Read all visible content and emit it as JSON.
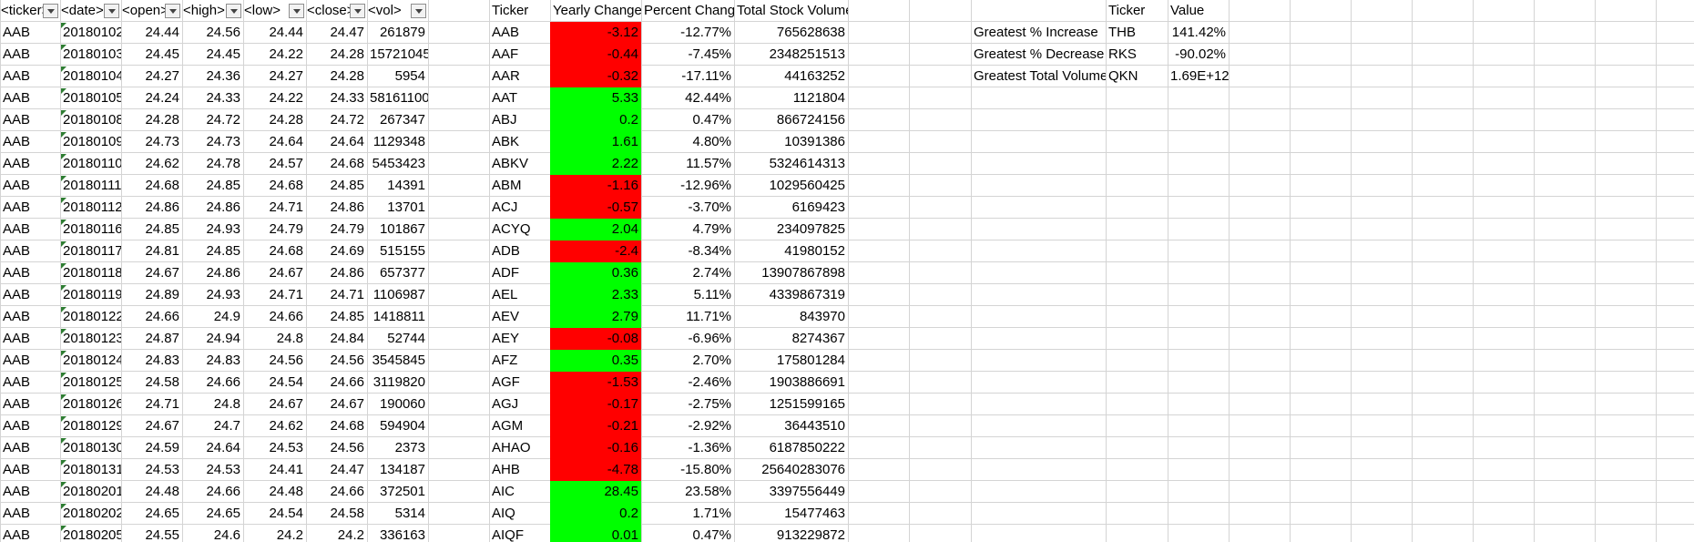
{
  "colors": {
    "positive": "#00ff00",
    "negative": "#ff0000",
    "grid": "#d4d4d4"
  },
  "icons": {
    "filter": "filter-dropdown-icon",
    "text_number": "number-stored-as-text-indicator"
  },
  "raw_headers": [
    "<ticker>",
    "<date>",
    "<open>",
    "<high>",
    "<low>",
    "<close>",
    "<vol>"
  ],
  "raw_rows": [
    [
      "AAB",
      "20180102",
      "24.44",
      "24.56",
      "24.44",
      "24.47",
      "261879"
    ],
    [
      "AAB",
      "20180103",
      "24.45",
      "24.45",
      "24.22",
      "24.28",
      "15721045"
    ],
    [
      "AAB",
      "20180104",
      "24.27",
      "24.36",
      "24.27",
      "24.28",
      "5954"
    ],
    [
      "AAB",
      "20180105",
      "24.24",
      "24.33",
      "24.22",
      "24.33",
      "58161100"
    ],
    [
      "AAB",
      "20180108",
      "24.28",
      "24.72",
      "24.28",
      "24.72",
      "267347"
    ],
    [
      "AAB",
      "20180109",
      "24.73",
      "24.73",
      "24.64",
      "24.64",
      "1129348"
    ],
    [
      "AAB",
      "20180110",
      "24.62",
      "24.78",
      "24.57",
      "24.68",
      "5453423"
    ],
    [
      "AAB",
      "20180111",
      "24.68",
      "24.85",
      "24.68",
      "24.85",
      "14391"
    ],
    [
      "AAB",
      "20180112",
      "24.86",
      "24.86",
      "24.71",
      "24.86",
      "13701"
    ],
    [
      "AAB",
      "20180116",
      "24.85",
      "24.93",
      "24.79",
      "24.79",
      "101867"
    ],
    [
      "AAB",
      "20180117",
      "24.81",
      "24.85",
      "24.68",
      "24.69",
      "515155"
    ],
    [
      "AAB",
      "20180118",
      "24.67",
      "24.86",
      "24.67",
      "24.86",
      "657377"
    ],
    [
      "AAB",
      "20180119",
      "24.89",
      "24.93",
      "24.71",
      "24.71",
      "1106987"
    ],
    [
      "AAB",
      "20180122",
      "24.66",
      "24.9",
      "24.66",
      "24.85",
      "1418811"
    ],
    [
      "AAB",
      "20180123",
      "24.87",
      "24.94",
      "24.8",
      "24.84",
      "52744"
    ],
    [
      "AAB",
      "20180124",
      "24.83",
      "24.83",
      "24.56",
      "24.56",
      "3545845"
    ],
    [
      "AAB",
      "20180125",
      "24.58",
      "24.66",
      "24.54",
      "24.66",
      "3119820"
    ],
    [
      "AAB",
      "20180126",
      "24.71",
      "24.8",
      "24.67",
      "24.67",
      "190060"
    ],
    [
      "AAB",
      "20180129",
      "24.67",
      "24.7",
      "24.62",
      "24.68",
      "594904"
    ],
    [
      "AAB",
      "20180130",
      "24.59",
      "24.64",
      "24.53",
      "24.56",
      "2373"
    ],
    [
      "AAB",
      "20180131",
      "24.53",
      "24.53",
      "24.41",
      "24.47",
      "134187"
    ],
    [
      "AAB",
      "20180201",
      "24.48",
      "24.66",
      "24.48",
      "24.66",
      "372501"
    ],
    [
      "AAB",
      "20180202",
      "24.65",
      "24.65",
      "24.54",
      "24.58",
      "5314"
    ],
    [
      "AAB",
      "20180205",
      "24.55",
      "24.6",
      "24.2",
      "24.2",
      "336163"
    ]
  ],
  "summary_headers": [
    "Ticker",
    "Yearly Change",
    "Percent Change",
    "Total Stock Volume"
  ],
  "summary_rows": [
    {
      "ticker": "AAB",
      "change": "-3.12",
      "pct": "-12.77%",
      "vol": "765628638",
      "status": "negative"
    },
    {
      "ticker": "AAF",
      "change": "-0.44",
      "pct": "-7.45%",
      "vol": "2348251513",
      "status": "negative"
    },
    {
      "ticker": "AAR",
      "change": "-0.32",
      "pct": "-17.11%",
      "vol": "44163252",
      "status": "negative"
    },
    {
      "ticker": "AAT",
      "change": "5.33",
      "pct": "42.44%",
      "vol": "1121804",
      "status": "positive"
    },
    {
      "ticker": "ABJ",
      "change": "0.2",
      "pct": "0.47%",
      "vol": "866724156",
      "status": "positive"
    },
    {
      "ticker": "ABK",
      "change": "1.61",
      "pct": "4.80%",
      "vol": "10391386",
      "status": "positive"
    },
    {
      "ticker": "ABKV",
      "change": "2.22",
      "pct": "11.57%",
      "vol": "5324614313",
      "status": "positive"
    },
    {
      "ticker": "ABM",
      "change": "-1.16",
      "pct": "-12.96%",
      "vol": "1029560425",
      "status": "negative"
    },
    {
      "ticker": "ACJ",
      "change": "-0.57",
      "pct": "-3.70%",
      "vol": "6169423",
      "status": "negative"
    },
    {
      "ticker": "ACYQ",
      "change": "2.04",
      "pct": "4.79%",
      "vol": "234097825",
      "status": "positive"
    },
    {
      "ticker": "ADB",
      "change": "-2.4",
      "pct": "-8.34%",
      "vol": "41980152",
      "status": "negative"
    },
    {
      "ticker": "ADF",
      "change": "0.36",
      "pct": "2.74%",
      "vol": "13907867898",
      "status": "positive"
    },
    {
      "ticker": "AEL",
      "change": "2.33",
      "pct": "5.11%",
      "vol": "4339867319",
      "status": "positive"
    },
    {
      "ticker": "AEV",
      "change": "2.79",
      "pct": "11.71%",
      "vol": "843970",
      "status": "positive"
    },
    {
      "ticker": "AEY",
      "change": "-0.08",
      "pct": "-6.96%",
      "vol": "8274367",
      "status": "negative"
    },
    {
      "ticker": "AFZ",
      "change": "0.35",
      "pct": "2.70%",
      "vol": "175801284",
      "status": "positive"
    },
    {
      "ticker": "AGF",
      "change": "-1.53",
      "pct": "-2.46%",
      "vol": "1903886691",
      "status": "negative"
    },
    {
      "ticker": "AGJ",
      "change": "-0.17",
      "pct": "-2.75%",
      "vol": "1251599165",
      "status": "negative"
    },
    {
      "ticker": "AGM",
      "change": "-0.21",
      "pct": "-2.92%",
      "vol": "36443510",
      "status": "negative"
    },
    {
      "ticker": "AHAO",
      "change": "-0.16",
      "pct": "-1.36%",
      "vol": "6187850222",
      "status": "negative"
    },
    {
      "ticker": "AHB",
      "change": "-4.78",
      "pct": "-15.80%",
      "vol": "25640283076",
      "status": "negative"
    },
    {
      "ticker": "AIC",
      "change": "28.45",
      "pct": "23.58%",
      "vol": "3397556449",
      "status": "positive"
    },
    {
      "ticker": "AIQ",
      "change": "0.2",
      "pct": "1.71%",
      "vol": "15477463",
      "status": "positive"
    },
    {
      "ticker": "AIQF",
      "change": "0.01",
      "pct": "0.47%",
      "vol": "913229872",
      "status": "positive"
    }
  ],
  "greatest_headers": [
    "Ticker",
    "Value"
  ],
  "greatest_rows": [
    {
      "label": "Greatest % Increase",
      "ticker": "THB",
      "value": "141.42%"
    },
    {
      "label": "Greatest % Decrease",
      "ticker": "RKS",
      "value": "-90.02%"
    },
    {
      "label": "Greatest Total Volume",
      "ticker": "QKN",
      "value": "1.69E+12"
    }
  ]
}
